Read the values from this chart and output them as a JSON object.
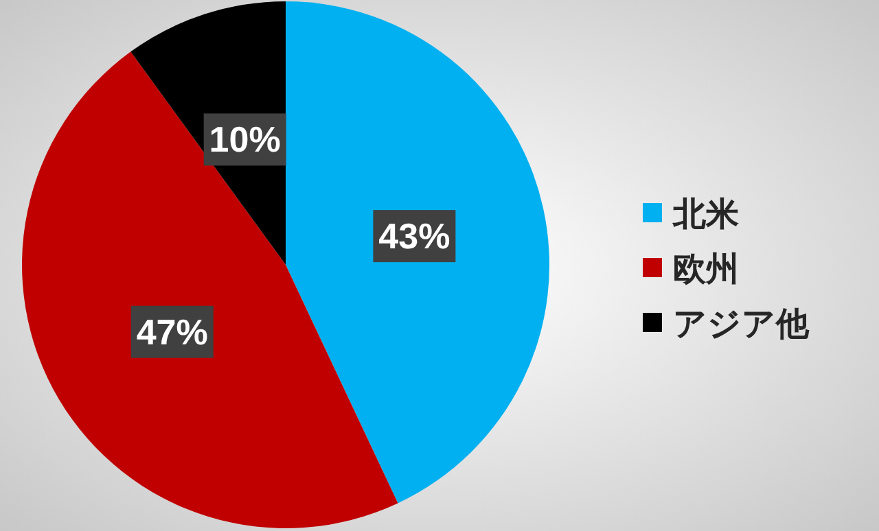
{
  "chart_data": {
    "type": "pie",
    "categories": [
      "北米",
      "欧州",
      "アジア他"
    ],
    "values": [
      43,
      47,
      10
    ],
    "colors": [
      "#00b0f0",
      "#c00000",
      "#000000"
    ],
    "value_labels": [
      "43%",
      "47%",
      "10%"
    ],
    "legend": "right"
  }
}
